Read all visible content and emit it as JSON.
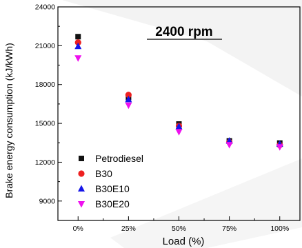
{
  "chart_data": {
    "type": "scatter",
    "title": "2400 rpm",
    "xlabel": "Load (%)",
    "ylabel": "Brake energy consumption (kJ/kWh)",
    "categories": [
      "0%",
      "25%",
      "50%",
      "75%",
      "100%"
    ],
    "x_values": [
      0,
      25,
      50,
      75,
      100
    ],
    "xlim": [
      -10,
      110
    ],
    "ylim": [
      7500,
      24000
    ],
    "yticks": [
      9000,
      12000,
      15000,
      18000,
      21000,
      24000
    ],
    "ytick_labels": [
      "9000",
      "12000",
      "15000",
      "18000",
      "21000",
      "24000"
    ],
    "grid": false,
    "legend_position": "bottom-left",
    "series": [
      {
        "name": "Petrodiesel",
        "marker": "square",
        "color": "#111111",
        "values": [
          21700,
          17000,
          14950,
          13650,
          13480
        ]
      },
      {
        "name": "B30",
        "marker": "circle",
        "color": "#ee2020",
        "values": [
          21250,
          17200,
          14800,
          13550,
          13320
        ]
      },
      {
        "name": "B30E10",
        "marker": "triangle-up",
        "color": "#1515e8",
        "values": [
          20950,
          16850,
          14750,
          13650,
          13400
        ]
      },
      {
        "name": "B30E20",
        "marker": "triangle-down",
        "color": "#ee10ee",
        "values": [
          20050,
          16400,
          14350,
          13350,
          13180
        ]
      }
    ]
  }
}
